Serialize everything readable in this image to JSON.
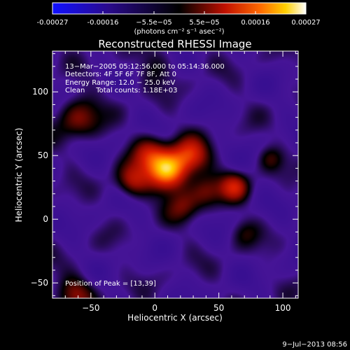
{
  "colorbar": {
    "tick_labels": [
      "-0.00027",
      "-0.00016",
      "−5.5e−05",
      "5.5e−05",
      "0.00016",
      "0.00027"
    ],
    "unit_label": "(photons cm⁻² s⁻¹ asec⁻²)",
    "range": [
      -0.00027,
      0.00027
    ],
    "colormap": "blue-black-red-yellow-white"
  },
  "title": "Reconstructed RHESSI Image",
  "annotations": {
    "line1": "13−Mar−2005 05:12:56.000 to 05:14:36.000",
    "line2": "Detectors: 4F 5F 6F 7F 8F, Att 0",
    "line3": "Energy Range: 12.0 − 25.0 keV",
    "line4": "Clean     Total counts: 1.18E+03",
    "peak": "Position of Peak = [13,39]"
  },
  "footer_date": "9−Jul−2013 08:56",
  "chart_data": {
    "type": "heatmap",
    "title": "Reconstructed RHESSI Image",
    "xlabel": "Heliocentric X (arcsec)",
    "ylabel": "Heliocentric Y (arcsec)",
    "xlim": [
      -80,
      112
    ],
    "ylim": [
      -62,
      132
    ],
    "x_ticks": [
      -50,
      0,
      50,
      100
    ],
    "y_ticks": [
      -50,
      0,
      50,
      100
    ],
    "x_tick_labels": [
      "−50",
      "0",
      "50",
      "100"
    ],
    "y_tick_labels": [
      "−50",
      "0",
      "50",
      "100"
    ],
    "peak_position": [
      13,
      39
    ],
    "grid": false,
    "sources": [
      {
        "x": 10,
        "y": 38,
        "amp": 1.0,
        "sigma": 11
      },
      {
        "x": 28,
        "y": 50,
        "amp": 0.55,
        "sigma": 10
      },
      {
        "x": -5,
        "y": 52,
        "amp": 0.45,
        "sigma": 10
      },
      {
        "x": -18,
        "y": 30,
        "amp": 0.45,
        "sigma": 9
      },
      {
        "x": 62,
        "y": 26,
        "amp": 0.5,
        "sigma": 8
      },
      {
        "x": 40,
        "y": 22,
        "amp": 0.35,
        "sigma": 9
      },
      {
        "x": -60,
        "y": 80,
        "amp": 0.4,
        "sigma": 12
      },
      {
        "x": 22,
        "y": 10,
        "amp": 0.3,
        "sigma": 9
      },
      {
        "x": -62,
        "y": -58,
        "amp": 0.4,
        "sigma": 10
      },
      {
        "x": 90,
        "y": 48,
        "amp": 0.25,
        "sigma": 7
      },
      {
        "x": 0,
        "y": 120,
        "amp": 0.2,
        "sigma": 10
      },
      {
        "x": 70,
        "y": -10,
        "amp": 0.2,
        "sigma": 8
      }
    ],
    "background_level": -0.22
  }
}
